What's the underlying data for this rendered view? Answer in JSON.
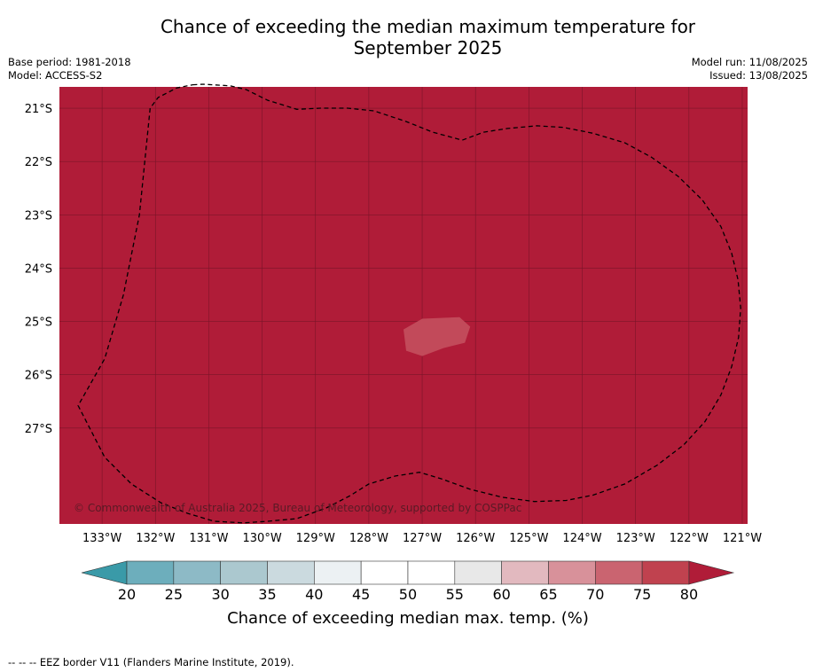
{
  "title_line1": "Chance of exceeding the median maximum temperature for",
  "title_line2": "September 2025",
  "meta_left": [
    "Base period: 1981-2018",
    "Model: ACCESS-S2"
  ],
  "meta_right": [
    "Model run: 11/08/2025",
    "Issued: 13/08/2025"
  ],
  "map": {
    "background_color": "#b01c38",
    "lon_range": [
      -133.8,
      -120.9
    ],
    "lat_range": [
      -28.8,
      -20.6
    ],
    "lon_ticks": [
      -133,
      -132,
      -131,
      -130,
      -129,
      -128,
      -127,
      -126,
      -125,
      -124,
      -123,
      -122,
      -121
    ],
    "lon_tick_labels": [
      "133°W",
      "132°W",
      "131°W",
      "130°W",
      "129°W",
      "128°W",
      "127°W",
      "126°W",
      "125°W",
      "124°W",
      "123°W",
      "122°W",
      "121°W"
    ],
    "lat_ticks": [
      -21,
      -22,
      -23,
      -24,
      -25,
      -26,
      -27
    ],
    "lat_tick_labels": [
      "21°S",
      "22°S",
      "23°S",
      "24°S",
      "25°S",
      "26°S",
      "27°S"
    ],
    "copyright": "© Commonwealth of Australia 2025, Bureau of Meteorology, supported by COSPPac",
    "patch": {
      "color": "#c24a5a",
      "range": "70-75",
      "outline": [
        [
          -127.0,
          -24.95
        ],
        [
          -126.3,
          -24.92
        ],
        [
          -126.1,
          -25.1
        ],
        [
          -126.2,
          -25.4
        ],
        [
          -126.6,
          -25.5
        ],
        [
          -127.0,
          -25.65
        ],
        [
          -127.3,
          -25.55
        ],
        [
          -127.35,
          -25.15
        ]
      ]
    },
    "eez_outline": [
      [
        -131.3,
        -20.56
      ],
      [
        -131.1,
        -20.55
      ],
      [
        -130.6,
        -20.58
      ],
      [
        -130.3,
        -20.65
      ],
      [
        -129.9,
        -20.85
      ],
      [
        -129.35,
        -21.02
      ],
      [
        -128.9,
        -21.0
      ],
      [
        -128.4,
        -21.0
      ],
      [
        -127.9,
        -21.05
      ],
      [
        -127.3,
        -21.25
      ],
      [
        -126.8,
        -21.45
      ],
      [
        -126.25,
        -21.6
      ],
      [
        -125.85,
        -21.45
      ],
      [
        -125.4,
        -21.38
      ],
      [
        -124.85,
        -21.33
      ],
      [
        -124.35,
        -21.36
      ],
      [
        -123.8,
        -21.47
      ],
      [
        -123.2,
        -21.65
      ],
      [
        -122.7,
        -21.92
      ],
      [
        -122.2,
        -22.28
      ],
      [
        -121.75,
        -22.72
      ],
      [
        -121.4,
        -23.22
      ],
      [
        -121.2,
        -23.72
      ],
      [
        -121.08,
        -24.22
      ],
      [
        -121.03,
        -24.75
      ],
      [
        -121.07,
        -25.3
      ],
      [
        -121.2,
        -25.85
      ],
      [
        -121.4,
        -26.38
      ],
      [
        -121.7,
        -26.88
      ],
      [
        -122.1,
        -27.32
      ],
      [
        -122.6,
        -27.7
      ],
      [
        -123.2,
        -28.05
      ],
      [
        -123.8,
        -28.26
      ],
      [
        -124.3,
        -28.36
      ],
      [
        -124.9,
        -28.38
      ],
      [
        -125.5,
        -28.3
      ],
      [
        -126.1,
        -28.15
      ],
      [
        -126.65,
        -27.95
      ],
      [
        -127.05,
        -27.83
      ],
      [
        -127.5,
        -27.9
      ],
      [
        -128.0,
        -28.05
      ],
      [
        -128.35,
        -28.27
      ],
      [
        -128.8,
        -28.5
      ],
      [
        -129.35,
        -28.7
      ],
      [
        -129.9,
        -28.75
      ],
      [
        -130.35,
        -28.78
      ],
      [
        -130.9,
        -28.75
      ],
      [
        -131.4,
        -28.6
      ],
      [
        -131.9,
        -28.4
      ],
      [
        -132.45,
        -28.05
      ],
      [
        -132.95,
        -27.55
      ],
      [
        -133.45,
        -26.58
      ],
      [
        -132.95,
        -25.7
      ],
      [
        -132.6,
        -24.5
      ],
      [
        -132.3,
        -23.0
      ],
      [
        -132.1,
        -21.0
      ],
      [
        -131.95,
        -20.8
      ],
      [
        -131.6,
        -20.62
      ]
    ]
  },
  "colorbar": {
    "label": "Chance of exceeding median max. temp. (%)",
    "ticks": [
      "20",
      "25",
      "30",
      "35",
      "40",
      "45",
      "50",
      "55",
      "60",
      "65",
      "70",
      "75",
      "80"
    ],
    "colors": [
      "#6daebc",
      "#8dbac6",
      "#abc8cf",
      "#cbdadf",
      "#ecf1f3",
      "#ffffff",
      "#ffffff",
      "#e8e8e8",
      "#e2b9bf",
      "#d8919a",
      "#ca6470",
      "#c0424f"
    ],
    "under_color": "#3a9aa8",
    "over_color": "#b01c38"
  },
  "footnote": "--  --  -- EEZ border V11 (Flanders Marine Institute, 2019)."
}
